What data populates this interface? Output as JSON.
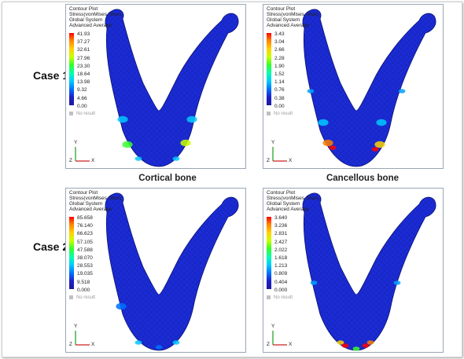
{
  "rows": [
    "Case 1",
    "Case 2"
  ],
  "columns": [
    "Cortical bone",
    "Cancellous bone"
  ],
  "header_lines": [
    "Contour Plot",
    "Stress(vonMises, Max)",
    "Global System",
    "Advanced Average"
  ],
  "no_result": "No result",
  "axis": {
    "y": "Y",
    "z": "Z",
    "x": "X"
  },
  "panels": [
    {
      "case": "Case 1",
      "bone": "Cortical bone",
      "legend": [
        "41.93",
        "37.27",
        "32.61",
        "27.96",
        "23.30",
        "18.64",
        "13.98",
        "9.32",
        "4.66",
        "0.00"
      ]
    },
    {
      "case": "Case 1",
      "bone": "Cancellous bone",
      "legend": [
        "3.43",
        "3.04",
        "2.66",
        "2.28",
        "1.90",
        "1.52",
        "1.14",
        "0.76",
        "0.38",
        "0.00"
      ]
    },
    {
      "case": "Case 2",
      "bone": "Cortical bone",
      "legend": [
        "85.658",
        "76.140",
        "66.623",
        "57.105",
        "47.588",
        "38.070",
        "28.553",
        "19.035",
        "9.518",
        "0.000"
      ]
    },
    {
      "case": "Case 2",
      "bone": "Cancellous bone",
      "legend": [
        "3.640",
        "3.236",
        "2.831",
        "2.427",
        "2.022",
        "1.618",
        "1.213",
        "0.809",
        "0.404",
        "0.000"
      ]
    }
  ],
  "colors": {
    "mesh_blue": "#1b2bd4",
    "frame_border": "#9aa7b4"
  }
}
